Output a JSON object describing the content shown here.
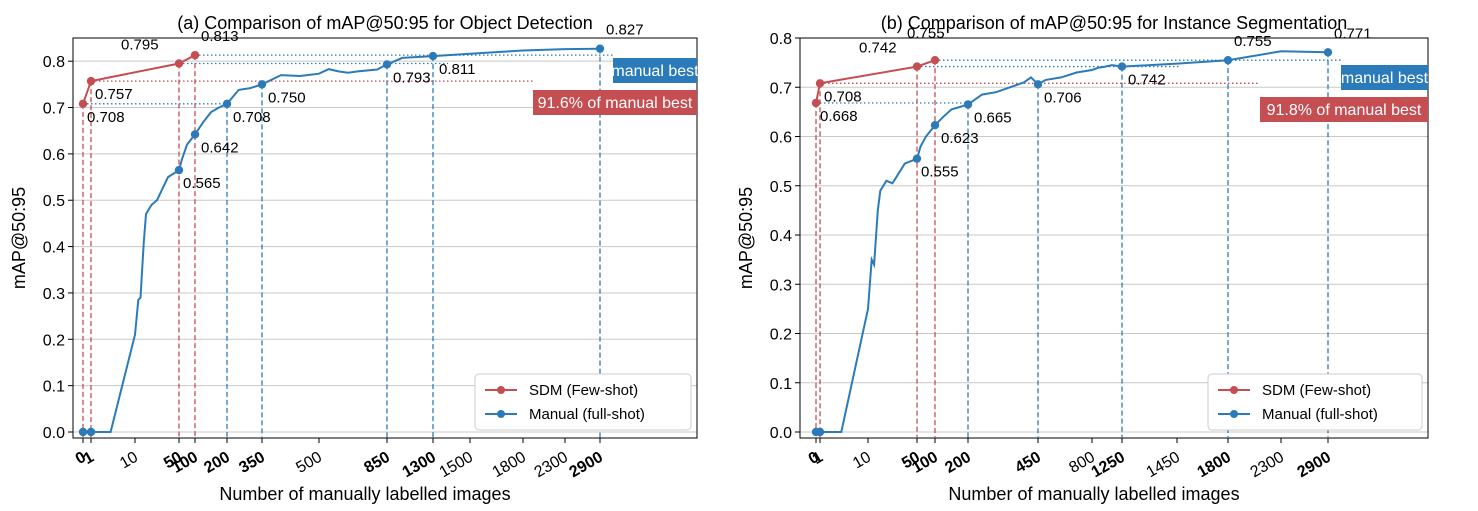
{
  "colors": {
    "sdm": "#c44e52",
    "manual": "#2b7bba",
    "grid": "#c8c8c8"
  },
  "legend": {
    "sdm": "SDM (Few-shot)",
    "manual": "Manual (full-shot)"
  },
  "chart_data": [
    {
      "type": "line",
      "title": "(a) Comparison of mAP@50:95 for Object Detection",
      "xlabel": "Number of manually labelled images",
      "ylabel": "mAP@50:95",
      "ylim": [
        0.0,
        0.85
      ],
      "yticks": [
        "0.0",
        "0.1",
        "0.2",
        "0.3",
        "0.4",
        "0.5",
        "0.6",
        "0.7",
        "0.8"
      ],
      "ygrid": true,
      "legend_position": "bottom-right",
      "xticks": [
        {
          "label": "0",
          "bold": true
        },
        {
          "label": "1",
          "bold": true
        },
        {
          "label": "10",
          "bold": false
        },
        {
          "label": "50",
          "bold": true
        },
        {
          "label": "100",
          "bold": true
        },
        {
          "label": "200",
          "bold": true
        },
        {
          "label": "350",
          "bold": true
        },
        {
          "label": "500",
          "bold": false
        },
        {
          "label": "850",
          "bold": true
        },
        {
          "label": "1300",
          "bold": true
        },
        {
          "label": "1500",
          "bold": false
        },
        {
          "label": "1800",
          "bold": false
        },
        {
          "label": "2300",
          "bold": false
        },
        {
          "label": "2900",
          "bold": true
        }
      ],
      "series": [
        {
          "name": "SDM (Few-shot)",
          "points": [
            [
              0,
              0.708
            ],
            [
              1,
              0.757
            ],
            [
              50,
              0.795
            ],
            [
              100,
              0.813
            ]
          ]
        },
        {
          "name": "Manual (full-shot)",
          "curve": [
            [
              0,
              0.0
            ],
            [
              1,
              0.0
            ],
            [
              5,
              0.0
            ],
            [
              10,
              0.21
            ],
            [
              13,
              0.285
            ],
            [
              15,
              0.29
            ],
            [
              18,
              0.41
            ],
            [
              20,
              0.47
            ],
            [
              25,
              0.49
            ],
            [
              30,
              0.5
            ],
            [
              40,
              0.55
            ],
            [
              50,
              0.565
            ],
            [
              60,
              0.59
            ],
            [
              75,
              0.62
            ],
            [
              100,
              0.642
            ],
            [
              125,
              0.668
            ],
            [
              150,
              0.69
            ],
            [
              175,
              0.7
            ],
            [
              200,
              0.708
            ],
            [
              250,
              0.738
            ],
            [
              300,
              0.742
            ],
            [
              350,
              0.75
            ],
            [
              400,
              0.77
            ],
            [
              450,
              0.768
            ],
            [
              500,
              0.773
            ],
            [
              550,
              0.783
            ],
            [
              600,
              0.778
            ],
            [
              650,
              0.775
            ],
            [
              700,
              0.778
            ],
            [
              800,
              0.782
            ],
            [
              850,
              0.793
            ],
            [
              1000,
              0.807
            ],
            [
              1300,
              0.811
            ],
            [
              1500,
              0.816
            ],
            [
              1800,
              0.823
            ],
            [
              2300,
              0.826
            ],
            [
              2900,
              0.827
            ]
          ],
          "points": [
            [
              0,
              0.0
            ],
            [
              1,
              0.0
            ],
            [
              50,
              0.565
            ],
            [
              100,
              0.642
            ],
            [
              200,
              0.708
            ],
            [
              350,
              0.75
            ],
            [
              850,
              0.793
            ],
            [
              1300,
              0.811
            ],
            [
              2900,
              0.827
            ]
          ]
        }
      ],
      "annotations": {
        "sdm_labels": [
          "0.708",
          "0.757",
          "0.795",
          "0.813"
        ],
        "manual_labels": [
          "0.565",
          "0.642",
          "0.708",
          "0.750",
          "0.793",
          "0.811",
          "0.827"
        ],
        "manual_best": {
          "text": "manual best",
          "value": 0.827
        },
        "percent_best": {
          "text": "91.6% of manual best",
          "value": 0.757
        }
      }
    },
    {
      "type": "line",
      "title": "(b) Comparison of mAP@50:95 for Instance Segmentation",
      "xlabel": "Number of manually labelled images",
      "ylabel": "mAP@50:95",
      "ylim": [
        0.0,
        0.8
      ],
      "yticks": [
        "0.0",
        "0.1",
        "0.2",
        "0.3",
        "0.4",
        "0.5",
        "0.6",
        "0.7",
        "0.8"
      ],
      "ygrid": true,
      "legend_position": "bottom-right",
      "xticks": [
        {
          "label": "0",
          "bold": true
        },
        {
          "label": "1",
          "bold": true
        },
        {
          "label": "10",
          "bold": false
        },
        {
          "label": "50",
          "bold": true
        },
        {
          "label": "100",
          "bold": true
        },
        {
          "label": "200",
          "bold": true
        },
        {
          "label": "450",
          "bold": true
        },
        {
          "label": "800",
          "bold": false
        },
        {
          "label": "1250",
          "bold": true
        },
        {
          "label": "1450",
          "bold": false
        },
        {
          "label": "1800",
          "bold": true
        },
        {
          "label": "2300",
          "bold": false
        },
        {
          "label": "2900",
          "bold": true
        }
      ],
      "series": [
        {
          "name": "SDM (Few-shot)",
          "points": [
            [
              0,
              0.668
            ],
            [
              1,
              0.708
            ],
            [
              50,
              0.742
            ],
            [
              100,
              0.755
            ]
          ]
        },
        {
          "name": "Manual (full-shot)",
          "curve": [
            [
              0,
              0.0
            ],
            [
              1,
              0.0
            ],
            [
              5,
              0.0
            ],
            [
              10,
              0.25
            ],
            [
              13,
              0.35
            ],
            [
              15,
              0.34
            ],
            [
              18,
              0.45
            ],
            [
              20,
              0.49
            ],
            [
              25,
              0.51
            ],
            [
              30,
              0.505
            ],
            [
              40,
              0.545
            ],
            [
              50,
              0.555
            ],
            [
              60,
              0.58
            ],
            [
              75,
              0.6
            ],
            [
              100,
              0.623
            ],
            [
              125,
              0.64
            ],
            [
              150,
              0.655
            ],
            [
              175,
              0.66
            ],
            [
              200,
              0.665
            ],
            [
              250,
              0.685
            ],
            [
              300,
              0.69
            ],
            [
              350,
              0.7
            ],
            [
              400,
              0.71
            ],
            [
              425,
              0.72
            ],
            [
              450,
              0.706
            ],
            [
              500,
              0.715
            ],
            [
              600,
              0.72
            ],
            [
              700,
              0.73
            ],
            [
              800,
              0.735
            ],
            [
              900,
              0.74
            ],
            [
              1000,
              0.742
            ],
            [
              1100,
              0.745
            ],
            [
              1250,
              0.742
            ],
            [
              1450,
              0.748
            ],
            [
              1800,
              0.755
            ],
            [
              2300,
              0.773
            ],
            [
              2900,
              0.771
            ]
          ],
          "points": [
            [
              0,
              0.0
            ],
            [
              1,
              0.0
            ],
            [
              50,
              0.555
            ],
            [
              100,
              0.623
            ],
            [
              200,
              0.665
            ],
            [
              450,
              0.706
            ],
            [
              1250,
              0.742
            ],
            [
              1800,
              0.755
            ],
            [
              2900,
              0.771
            ]
          ]
        }
      ],
      "annotations": {
        "sdm_labels": [
          "0.668",
          "0.708",
          "0.742",
          "0.755"
        ],
        "manual_labels": [
          "0.555",
          "0.623",
          "0.665",
          "0.706",
          "0.742",
          "0.755",
          "0.771"
        ],
        "manual_best": {
          "text": "manual best",
          "value": 0.771
        },
        "percent_best": {
          "text": "91.8% of manual best",
          "value": 0.708
        }
      }
    }
  ]
}
